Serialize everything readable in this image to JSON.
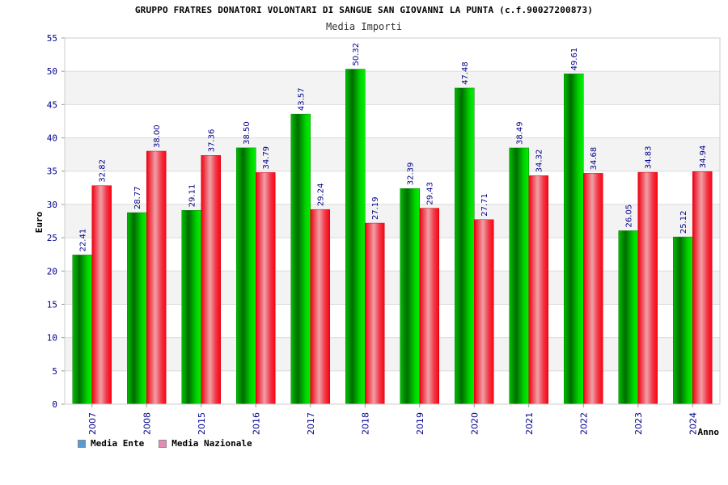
{
  "chart_data": {
    "type": "bar",
    "title": "GRUPPO FRATRES DONATORI VOLONTARI DI SANGUE SAN GIOVANNI LA PUNTA (c.f.90027200873)",
    "subtitle": "Media Importi",
    "xlabel": "Anno",
    "ylabel": "Euro",
    "ylim": [
      0,
      55
    ],
    "yticks": [
      0,
      5,
      10,
      15,
      20,
      25,
      30,
      35,
      40,
      45,
      50,
      55
    ],
    "grid": true,
    "legend_position": "bottom-left",
    "categories": [
      "2007",
      "2008",
      "2015",
      "2016",
      "2017",
      "2018",
      "2019",
      "2020",
      "2021",
      "2022",
      "2023",
      "2024"
    ],
    "series": [
      {
        "name": "Media Ente",
        "color": "#00a800",
        "legend_color": "#5b9bd5",
        "values": [
          22.41,
          28.77,
          29.11,
          38.5,
          43.57,
          50.32,
          32.39,
          47.48,
          38.49,
          49.61,
          26.05,
          25.12
        ],
        "labels": [
          "22.41",
          "28.77",
          "29.11",
          "38.50",
          "43.57",
          "50.32",
          "32.39",
          "47.48",
          "38.49",
          "49.61",
          "26.05",
          "25.12"
        ]
      },
      {
        "name": "Media Nazionale",
        "color": "#ee0011",
        "legend_color": "#e58bb5",
        "values": [
          32.82,
          38.0,
          37.36,
          34.79,
          29.24,
          27.19,
          29.43,
          27.71,
          34.32,
          34.68,
          34.83,
          34.94
        ],
        "labels": [
          "32.82",
          "38.00",
          "37.36",
          "34.79",
          "29.24",
          "27.19",
          "29.43",
          "27.71",
          "34.32",
          "34.68",
          "34.83",
          "34.94"
        ]
      }
    ]
  }
}
